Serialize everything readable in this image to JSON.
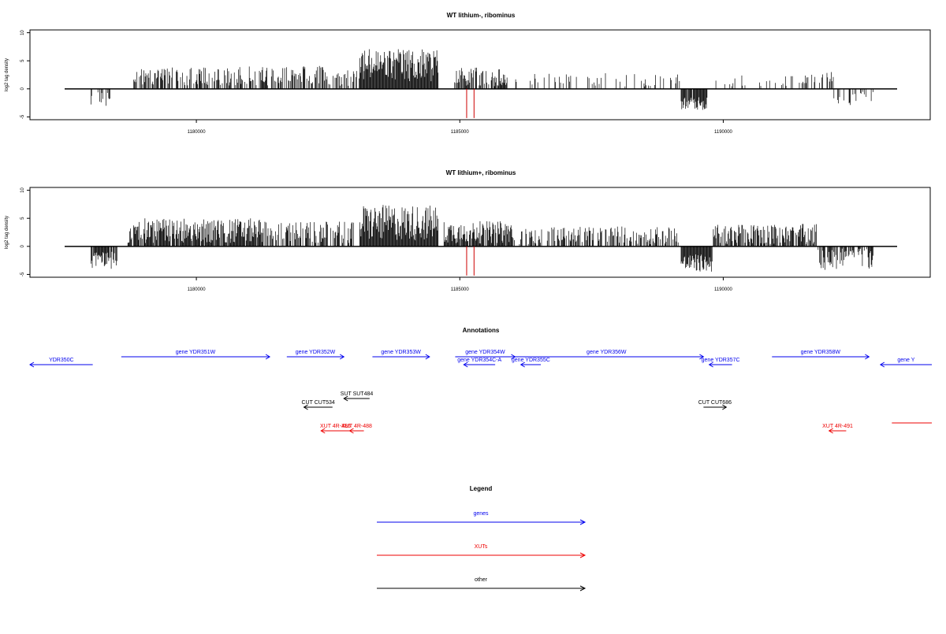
{
  "chart_data": [
    {
      "type": "bar",
      "title": "WT lithium-, ribominus",
      "xlabel": "",
      "ylabel": "log2 tag density",
      "xlim": [
        1177500,
        1193300
      ],
      "ylim": [
        -5.5,
        10.5
      ],
      "xticks": [
        1180000,
        1185000,
        1190000
      ],
      "xtick_labels": [
        "1180000",
        "1185000",
        "1190000"
      ],
      "yticks": [
        -5,
        0,
        5,
        10
      ],
      "ytick_labels": [
        "-5",
        "0",
        "5",
        "10"
      ],
      "marker_lines": {
        "color": "#cc0000",
        "x": [
          1185130,
          1185270
        ],
        "y_from": 0,
        "y_to": -5.2
      },
      "regions": [
        {
          "start": 1178000,
          "end": 1178400,
          "base": -1.8,
          "amp": 1.4,
          "density": 0.3
        },
        {
          "start": 1178800,
          "end": 1180800,
          "base": 2.2,
          "amp": 1.6,
          "density": 0.55
        },
        {
          "start": 1180800,
          "end": 1181700,
          "base": 2.4,
          "amp": 1.8,
          "density": 0.45
        },
        {
          "start": 1181700,
          "end": 1182500,
          "base": 2.5,
          "amp": 1.6,
          "density": 0.5
        },
        {
          "start": 1182500,
          "end": 1183100,
          "base": 2.0,
          "amp": 1.5,
          "density": 0.35
        },
        {
          "start": 1183100,
          "end": 1184600,
          "base": 4.2,
          "amp": 3.0,
          "density": 1.0
        },
        {
          "start": 1184900,
          "end": 1185900,
          "base": 2.0,
          "amp": 1.8,
          "density": 0.7
        },
        {
          "start": 1186000,
          "end": 1189200,
          "base": 1.6,
          "amp": 1.2,
          "density": 0.18
        },
        {
          "start": 1189200,
          "end": 1189700,
          "base": -2.6,
          "amp": 1.2,
          "density": 0.9
        },
        {
          "start": 1189800,
          "end": 1191500,
          "base": 1.4,
          "amp": 1.0,
          "density": 0.12
        },
        {
          "start": 1191500,
          "end": 1192100,
          "base": 1.8,
          "amp": 1.3,
          "density": 0.25
        },
        {
          "start": 1192100,
          "end": 1192900,
          "base": -1.6,
          "amp": 1.4,
          "density": 0.3
        }
      ]
    },
    {
      "type": "bar",
      "title": "WT lithium+, ribominus",
      "xlabel": "",
      "ylabel": "log2 tag density",
      "xlim": [
        1177500,
        1193300
      ],
      "ylim": [
        -5.5,
        10.5
      ],
      "xticks": [
        1180000,
        1185000,
        1190000
      ],
      "xtick_labels": [
        "1180000",
        "1185000",
        "1190000"
      ],
      "yticks": [
        -5,
        0,
        5,
        10
      ],
      "ytick_labels": [
        "-5",
        "0",
        "5",
        "10"
      ],
      "marker_lines": {
        "color": "#cc0000",
        "x": [
          1185130,
          1185270
        ],
        "y_from": 0,
        "y_to": -5.2
      },
      "regions": [
        {
          "start": 1178000,
          "end": 1178500,
          "base": -2.4,
          "amp": 1.6,
          "density": 0.9
        },
        {
          "start": 1178700,
          "end": 1181300,
          "base": 2.8,
          "amp": 2.2,
          "density": 0.9
        },
        {
          "start": 1181300,
          "end": 1182200,
          "base": 2.6,
          "amp": 1.8,
          "density": 0.6
        },
        {
          "start": 1182200,
          "end": 1183000,
          "base": 2.4,
          "amp": 2.0,
          "density": 0.6
        },
        {
          "start": 1183100,
          "end": 1184600,
          "base": 4.2,
          "amp": 3.2,
          "density": 1.0
        },
        {
          "start": 1184700,
          "end": 1186000,
          "base": 2.5,
          "amp": 2.0,
          "density": 0.9
        },
        {
          "start": 1186000,
          "end": 1189200,
          "base": 2.0,
          "amp": 1.6,
          "density": 0.5
        },
        {
          "start": 1189200,
          "end": 1189800,
          "base": -3.0,
          "amp": 1.6,
          "density": 1.0
        },
        {
          "start": 1189800,
          "end": 1191800,
          "base": 2.2,
          "amp": 1.8,
          "density": 0.75
        },
        {
          "start": 1191800,
          "end": 1192900,
          "base": -2.0,
          "amp": 2.2,
          "density": 0.6
        }
      ]
    },
    {
      "type": "annotation-track",
      "title": "Annotations",
      "xlim": [
        1177500,
        1193300
      ],
      "items": [
        {
          "label": "YDR350C",
          "category": "genes",
          "start": 1177500,
          "end": 1178600,
          "strand": "-",
          "row": 1
        },
        {
          "label": "gene YDR351W",
          "category": "genes",
          "start": 1179100,
          "end": 1181700,
          "strand": "+",
          "row": 0
        },
        {
          "label": "gene YDR352W",
          "category": "genes",
          "start": 1182000,
          "end": 1183000,
          "strand": "+",
          "row": 0
        },
        {
          "label": "gene YDR353W",
          "category": "genes",
          "start": 1183500,
          "end": 1184500,
          "strand": "+",
          "row": 0
        },
        {
          "label": "gene YDR354W",
          "category": "genes",
          "start": 1184950,
          "end": 1186000,
          "strand": "+",
          "row": 0
        },
        {
          "label": "gene YDR354C-A",
          "category": "genes",
          "start": 1185100,
          "end": 1185650,
          "strand": "-",
          "row": 1
        },
        {
          "label": "gene YDR355C",
          "category": "genes",
          "start": 1186100,
          "end": 1186450,
          "strand": "-",
          "row": 1
        },
        {
          "label": "gene YDR356W",
          "category": "genes",
          "start": 1185900,
          "end": 1189300,
          "strand": "+",
          "row": 0
        },
        {
          "label": "gene YDR357C",
          "category": "genes",
          "start": 1189400,
          "end": 1189800,
          "strand": "-",
          "row": 1
        },
        {
          "label": "gene YDR358W",
          "category": "genes",
          "start": 1190500,
          "end": 1192200,
          "strand": "+",
          "row": 0
        },
        {
          "label": "gene Y",
          "category": "genes",
          "start": 1192400,
          "end": 1193300,
          "strand": "-",
          "row": 1
        },
        {
          "label": "SUT SUT484",
          "category": "other",
          "start": 1183000,
          "end": 1183450,
          "strand": "-",
          "row": 3
        },
        {
          "label": "CUT CUT534",
          "category": "other",
          "start": 1182300,
          "end": 1182800,
          "strand": "-",
          "row": 4
        },
        {
          "label": "CUT CUT686",
          "category": "other",
          "start": 1189300,
          "end": 1189700,
          "strand": "+",
          "row": 4
        },
        {
          "label": "XUT 4R-486",
          "category": "XUTs",
          "start": 1182600,
          "end": 1183100,
          "strand": "-",
          "row": 5
        },
        {
          "label": "XUT 4R-488",
          "category": "XUTs",
          "start": 1183100,
          "end": 1183350,
          "strand": "-",
          "row": 5
        },
        {
          "label": "XUT 4R-491",
          "category": "XUTs",
          "start": 1191500,
          "end": 1191800,
          "strand": "-",
          "row": 5
        },
        {
          "label": "",
          "category": "XUTs",
          "start": 1192600,
          "end": 1193300,
          "strand": "none",
          "row": 4.7
        }
      ]
    },
    {
      "type": "legend",
      "title": "Legend",
      "entries": [
        {
          "label": "genes",
          "color": "#0000ee"
        },
        {
          "label": "XUTs",
          "color": "#ee0000"
        },
        {
          "label": "other",
          "color": "#000000"
        }
      ]
    }
  ],
  "colors": {
    "genes": "#0000ee",
    "XUTs": "#ee0000",
    "other": "#000000",
    "marker": "#cc0000"
  }
}
